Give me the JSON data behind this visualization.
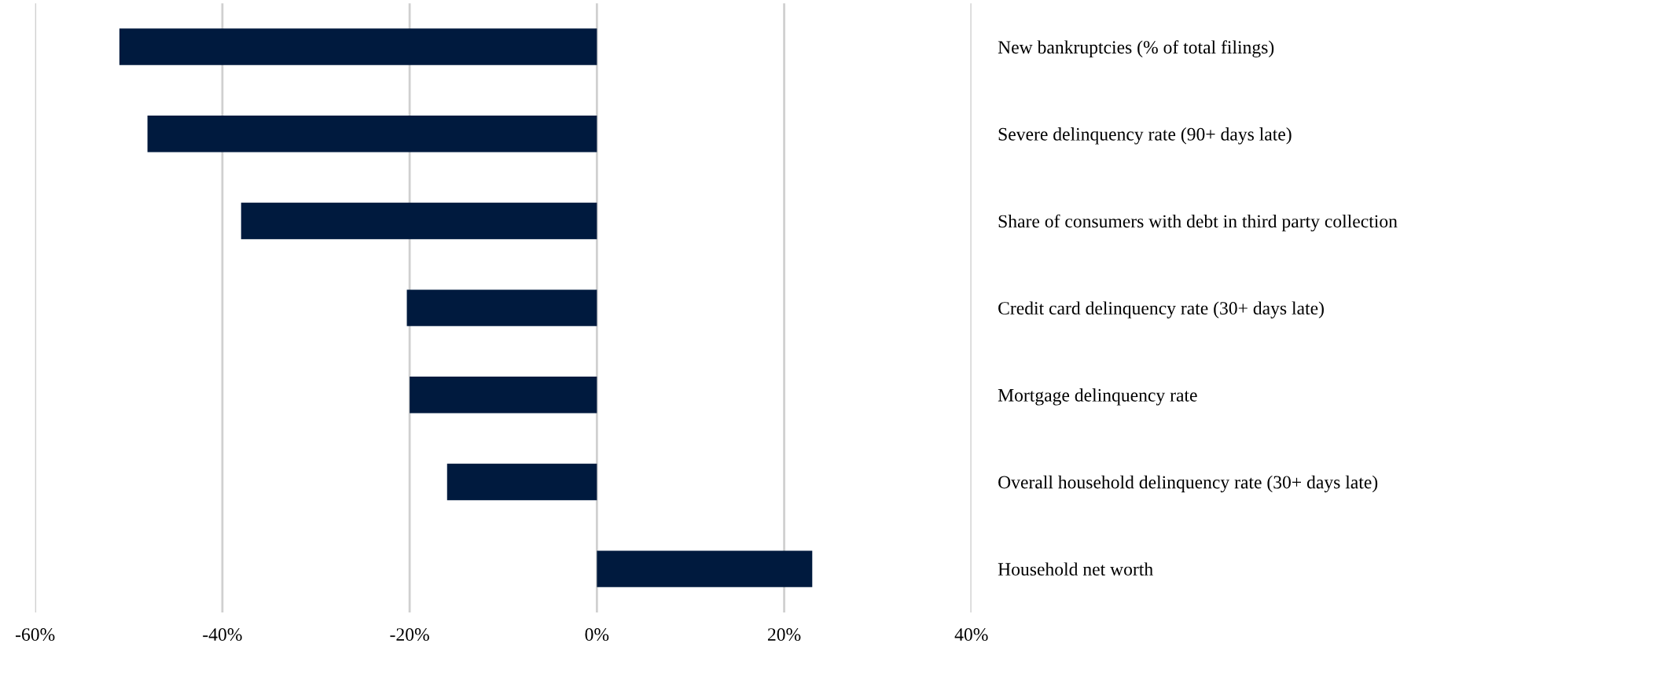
{
  "chart_data": {
    "type": "bar",
    "orientation": "horizontal",
    "categories": [
      "New bankruptcies (% of total filings)",
      "Severe delinquency rate (90+ days late)",
      "Share of consumers with debt in third party collection",
      "Credit card delinquency rate (30+ days late)",
      "Mortgage delinquency rate",
      "Overall household delinquency rate (30+ days late)",
      "Household net worth"
    ],
    "values": [
      -51,
      -48,
      -38,
      -20.3,
      -20,
      -16,
      23
    ],
    "color": "#001a3e",
    "xlim": [
      -60,
      40
    ],
    "xticks": [
      {
        "value": -60,
        "label": "-60%"
      },
      {
        "value": -40,
        "label": "-40%"
      },
      {
        "value": -20,
        "label": "-20%"
      },
      {
        "value": 0,
        "label": "0%"
      },
      {
        "value": 20,
        "label": "20%"
      },
      {
        "value": 40,
        "label": "40%"
      }
    ],
    "grid": "x",
    "legend": false
  }
}
